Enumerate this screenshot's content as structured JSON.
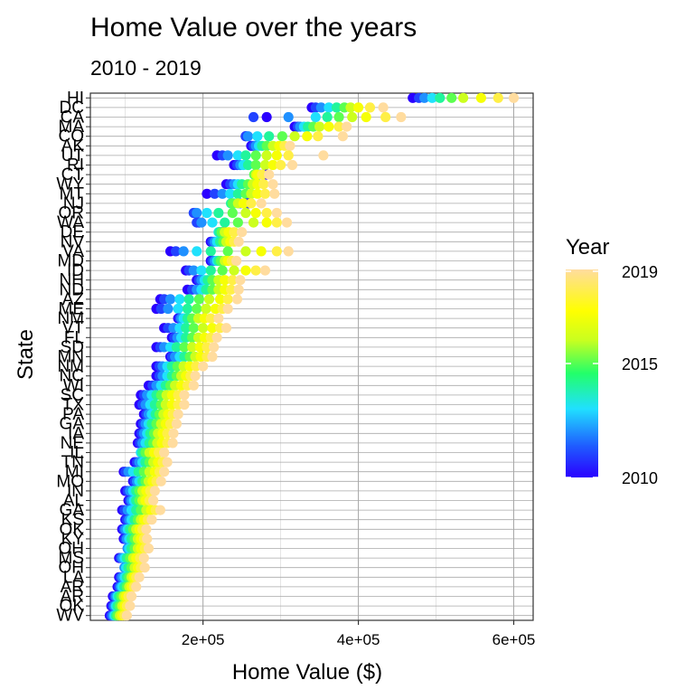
{
  "chart_data": {
    "type": "scatter",
    "title": "Home Value over the years",
    "subtitle": "2010 - 2019",
    "xlabel": "Home Value ($)",
    "ylabel": "State",
    "x_ticks": [
      "2e+05",
      "4e+05",
      "6e+05"
    ],
    "x_tick_values": [
      200000,
      400000,
      600000
    ],
    "xlim": [
      55000,
      625000
    ],
    "grid": true,
    "legend": {
      "title": "Year",
      "labels": [
        "2019",
        "2015",
        "2010"
      ],
      "position": "right",
      "min": 2010,
      "max": 2019
    },
    "color_scale": [
      "#2A00FF",
      "#1F5BFF",
      "#20E0FF",
      "#22FF6A",
      "#C9FF1F",
      "#FFFF00",
      "#FFDC9E"
    ],
    "years": [
      2010,
      2011,
      2012,
      2013,
      2014,
      2015,
      2016,
      2017,
      2018,
      2019
    ],
    "series": [
      {
        "state": "HI",
        "values": [
          470000,
          478000,
          485000,
          495000,
          505000,
          520000,
          535000,
          558000,
          580000,
          600000
        ]
      },
      {
        "state": "DC",
        "values": [
          340000,
          345000,
          352000,
          362000,
          372000,
          382000,
          390000,
          400000,
          415000,
          432000
        ]
      },
      {
        "state": "CA",
        "values": [
          282000,
          265000,
          310000,
          345000,
          360000,
          375000,
          392000,
          410000,
          435000,
          455000
        ]
      },
      {
        "state": "MA",
        "values": [
          318000,
          322000,
          325000,
          330000,
          335000,
          342000,
          350000,
          362000,
          375000,
          385000
        ]
      },
      {
        "state": "CO",
        "values": [
          255000,
          255000,
          258000,
          270000,
          285000,
          302000,
          318000,
          334000,
          348000,
          380000
        ]
      },
      {
        "state": "AK",
        "values": [
          262000,
          265000,
          268000,
          272000,
          276000,
          282000,
          290000,
          298000,
          305000,
          312000
        ]
      },
      {
        "state": "UT",
        "values": [
          218000,
          225000,
          232000,
          245000,
          255000,
          268000,
          282000,
          295000,
          310000,
          355000
        ]
      },
      {
        "state": "RI",
        "values": [
          240000,
          244000,
          248000,
          252000,
          258000,
          268000,
          280000,
          290000,
          300000,
          315000
        ]
      },
      {
        "state": "CT",
        "values": [
          282000,
          276000,
          272000,
          268000,
          266000,
          266000,
          268000,
          270000,
          276000,
          285000
        ]
      },
      {
        "state": "WY",
        "values": [
          230000,
          235000,
          240000,
          245000,
          250000,
          258000,
          264000,
          270000,
          278000,
          290000
        ]
      },
      {
        "state": "MT",
        "values": [
          205000,
          215000,
          225000,
          235000,
          245000,
          255000,
          262000,
          270000,
          280000,
          292000
        ]
      },
      {
        "state": "NJ",
        "values": [
          258000,
          255000,
          248000,
          240000,
          236000,
          238000,
          245000,
          252000,
          262000,
          275000
        ]
      },
      {
        "state": "OR",
        "values": [
          190000,
          188000,
          192000,
          205000,
          220000,
          238000,
          255000,
          268000,
          282000,
          295000
        ]
      },
      {
        "state": "WA",
        "values": [
          195000,
          192000,
          198000,
          212000,
          228000,
          245000,
          265000,
          282000,
          295000,
          308000
        ]
      },
      {
        "state": "DE",
        "values": [
          228000,
          225000,
          222000,
          220000,
          221000,
          224000,
          228000,
          233000,
          240000,
          250000
        ]
      },
      {
        "state": "NV",
        "values": [
          210000,
          212000,
          215000,
          218000,
          222000,
          226000,
          230000,
          235000,
          240000,
          246000
        ]
      },
      {
        "state": "VA",
        "values": [
          158000,
          165000,
          175000,
          192000,
          210000,
          232000,
          255000,
          275000,
          295000,
          310000
        ]
      },
      {
        "state": "MD",
        "values": [
          210000,
          212000,
          215000,
          218000,
          220000,
          223000,
          228000,
          232000,
          237000,
          243000
        ]
      },
      {
        "state": "ID",
        "values": [
          178000,
          182000,
          188000,
          198000,
          210000,
          225000,
          240000,
          255000,
          268000,
          280000
        ]
      },
      {
        "state": "NH",
        "values": [
          192000,
          195000,
          198000,
          202000,
          206000,
          212000,
          220000,
          228000,
          238000,
          248000
        ]
      },
      {
        "state": "ND",
        "values": [
          180000,
          186000,
          192000,
          198000,
          204000,
          212000,
          220000,
          228000,
          236000,
          246000
        ]
      },
      {
        "state": "AZ",
        "values": [
          145000,
          150000,
          158000,
          170000,
          182000,
          195000,
          208000,
          222000,
          232000,
          244000
        ]
      },
      {
        "state": "ME",
        "values": [
          140000,
          146000,
          155000,
          168000,
          180000,
          192000,
          204000,
          216000,
          225000,
          232000
        ]
      },
      {
        "state": "NM",
        "values": [
          168000,
          170000,
          172000,
          175000,
          180000,
          186000,
          194000,
          202000,
          210000,
          220000
        ]
      },
      {
        "state": "VT",
        "values": [
          150000,
          155000,
          162000,
          170000,
          178000,
          188000,
          200000,
          212000,
          222000,
          230000
        ]
      },
      {
        "state": "FL",
        "values": [
          160000,
          163000,
          167000,
          172000,
          178000,
          186000,
          194000,
          202000,
          210000,
          218000
        ]
      },
      {
        "state": "SD",
        "values": [
          140000,
          145000,
          150000,
          158000,
          166000,
          176000,
          186000,
          196000,
          205000,
          214000
        ]
      },
      {
        "state": "MN",
        "values": [
          158000,
          160000,
          164000,
          170000,
          176000,
          183000,
          190000,
          197000,
          205000,
          212000
        ]
      },
      {
        "state": "NM",
        "values": [
          140000,
          144000,
          148000,
          154000,
          160000,
          167000,
          175000,
          183000,
          191000,
          200000
        ]
      },
      {
        "state": "NC",
        "values": [
          140000,
          144000,
          148000,
          154000,
          160000,
          166000,
          172000,
          178000,
          184000,
          190000
        ]
      },
      {
        "state": "WI",
        "values": [
          130000,
          135000,
          140000,
          146000,
          152000,
          158000,
          164000,
          172000,
          180000,
          188000
        ]
      },
      {
        "state": "SC",
        "values": [
          120000,
          124000,
          128000,
          134000,
          140000,
          146000,
          153000,
          160000,
          168000,
          176000
        ]
      },
      {
        "state": "TX",
        "values": [
          118000,
          122000,
          126000,
          132000,
          138000,
          146000,
          152000,
          160000,
          168000,
          176000
        ]
      },
      {
        "state": "PA",
        "values": [
          124000,
          127000,
          130000,
          134000,
          139000,
          144000,
          149000,
          155000,
          161000,
          168000
        ]
      },
      {
        "state": "GA",
        "values": [
          120000,
          123000,
          126000,
          130000,
          134000,
          140000,
          146000,
          152000,
          158000,
          166000
        ]
      },
      {
        "state": "IA",
        "values": [
          118000,
          121000,
          124000,
          128000,
          132000,
          137000,
          142000,
          148000,
          154000,
          162000
        ]
      },
      {
        "state": "NE",
        "values": [
          116000,
          119000,
          122000,
          126000,
          131000,
          136000,
          141000,
          147000,
          154000,
          161000
        ]
      },
      {
        "state": "IL",
        "values": [
          128000,
          125000,
          122000,
          120000,
          122000,
          126000,
          131000,
          137000,
          143000,
          150000
        ]
      },
      {
        "state": "TN",
        "values": [
          112000,
          115000,
          118000,
          122000,
          126000,
          131000,
          136000,
          142000,
          148000,
          154000
        ]
      },
      {
        "state": "MI",
        "values": [
          98000,
          100000,
          104000,
          110000,
          117000,
          124000,
          131000,
          138000,
          144000,
          150000
        ]
      },
      {
        "state": "MO",
        "values": [
          110000,
          112000,
          115000,
          118000,
          122000,
          126000,
          130000,
          135000,
          140000,
          146000
        ]
      },
      {
        "state": "IN",
        "values": [
          100000,
          103000,
          106000,
          110000,
          114000,
          118000,
          122000,
          127000,
          132000,
          138000
        ]
      },
      {
        "state": "AL",
        "values": [
          104000,
          106000,
          108000,
          111000,
          114000,
          118000,
          122000,
          126000,
          131000,
          136000
        ]
      },
      {
        "state": "GA",
        "values": [
          96000,
          99000,
          103000,
          108000,
          114000,
          120000,
          127000,
          133000,
          139000,
          145000
        ]
      },
      {
        "state": "KS",
        "values": [
          100000,
          102000,
          105000,
          108000,
          112000,
          116000,
          120000,
          124000,
          129000,
          134000
        ]
      },
      {
        "state": "OK",
        "values": [
          96000,
          98000,
          100000,
          103000,
          106000,
          110000,
          114000,
          118000,
          122000,
          127000
        ]
      },
      {
        "state": "KY",
        "values": [
          98000,
          100000,
          102000,
          105000,
          108000,
          112000,
          116000,
          120000,
          124000,
          128000
        ]
      },
      {
        "state": "OH",
        "values": [
          104000,
          103000,
          103000,
          105000,
          108000,
          112000,
          116000,
          120000,
          125000,
          130000
        ]
      },
      {
        "state": "MS",
        "values": [
          92000,
          94000,
          96000,
          99000,
          102000,
          106000,
          110000,
          114000,
          119000,
          124000
        ]
      },
      {
        "state": "OH",
        "values": [
          100000,
          99000,
          99000,
          101000,
          104000,
          108000,
          112000,
          116000,
          120000,
          125000
        ]
      },
      {
        "state": "LA",
        "values": [
          92000,
          94000,
          96000,
          99000,
          102000,
          105000,
          108000,
          111000,
          114000,
          118000
        ]
      },
      {
        "state": "AR",
        "values": [
          90000,
          92000,
          94000,
          96000,
          99000,
          102000,
          105000,
          108000,
          111000,
          114000
        ]
      },
      {
        "state": "AR",
        "values": [
          84000,
          86000,
          88000,
          90000,
          92000,
          95000,
          98000,
          101000,
          104000,
          108000
        ]
      },
      {
        "state": "OK",
        "values": [
          82000,
          84000,
          86000,
          88000,
          90000,
          93000,
          96000,
          99000,
          102000,
          106000
        ]
      },
      {
        "state": "WV",
        "values": [
          80000,
          82000,
          84000,
          86000,
          88000,
          90000,
          93000,
          96000,
          99000,
          102000
        ]
      }
    ]
  }
}
